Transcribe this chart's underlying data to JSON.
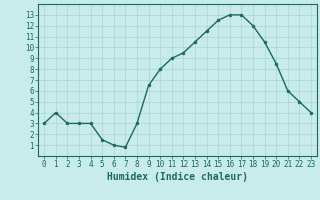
{
  "x": [
    0,
    1,
    2,
    3,
    4,
    5,
    6,
    7,
    8,
    9,
    10,
    11,
    12,
    13,
    14,
    15,
    16,
    17,
    18,
    19,
    20,
    21,
    22,
    23
  ],
  "y": [
    3,
    4,
    3,
    3,
    3,
    1.5,
    1,
    0.8,
    3,
    6.5,
    8,
    9,
    9.5,
    10.5,
    11.5,
    12.5,
    13,
    13,
    12,
    10.5,
    8.5,
    6,
    5,
    4
  ],
  "line_color": "#1a6b5a",
  "marker_color": "#1a6b5a",
  "bg_color": "#c8ecea",
  "grid_color": "#aed4d0",
  "xlabel": "Humidex (Indice chaleur)",
  "xlabel_fontsize": 7,
  "ylim": [
    0,
    14
  ],
  "xlim": [
    -0.5,
    23.5
  ],
  "yticks": [
    1,
    2,
    3,
    4,
    5,
    6,
    7,
    8,
    9,
    10,
    11,
    12,
    13
  ],
  "xticks": [
    0,
    1,
    2,
    3,
    4,
    5,
    6,
    7,
    8,
    9,
    10,
    11,
    12,
    13,
    14,
    15,
    16,
    17,
    18,
    19,
    20,
    21,
    22,
    23
  ],
  "tick_fontsize": 5.5,
  "line_width": 1.0,
  "marker_size": 2.0
}
